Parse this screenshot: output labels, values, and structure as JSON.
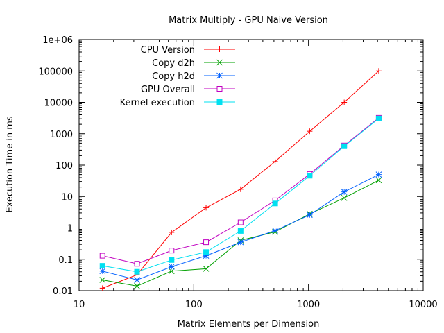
{
  "chart_data": {
    "type": "line",
    "title": "Matrix Multiply - GPU Naive Version",
    "xlabel": "Matrix Elements per Dimension",
    "ylabel": "Execution Time in ms",
    "xscale": "log",
    "yscale": "log",
    "xlim": [
      10,
      10000
    ],
    "ylim": [
      0.01,
      1000000
    ],
    "xticks": [
      {
        "value": 10,
        "label": "10"
      },
      {
        "value": 100,
        "label": "100"
      },
      {
        "value": 1000,
        "label": "1000"
      },
      {
        "value": 10000,
        "label": "10000"
      }
    ],
    "yticks": [
      {
        "value": 0.01,
        "label": "0.01"
      },
      {
        "value": 0.1,
        "label": "0.1"
      },
      {
        "value": 1,
        "label": "1"
      },
      {
        "value": 10,
        "label": "10"
      },
      {
        "value": 100,
        "label": "100"
      },
      {
        "value": 1000,
        "label": "1000"
      },
      {
        "value": 10000,
        "label": "10000"
      },
      {
        "value": 100000,
        "label": "100000"
      },
      {
        "value": 1000000,
        "label": "1e+06"
      }
    ],
    "grid": false,
    "legend_position": "top-left",
    "x": [
      16,
      32,
      64,
      128,
      256,
      512,
      1024,
      2048,
      4096
    ],
    "series": [
      {
        "name": "CPU Version",
        "color": "#ff0000",
        "marker": "plus",
        "values": [
          0.012,
          0.032,
          0.72,
          4.4,
          17,
          130,
          1200,
          10000,
          100000
        ]
      },
      {
        "name": "Copy d2h",
        "color": "#00a000",
        "marker": "cross",
        "values": [
          0.022,
          0.014,
          0.042,
          0.05,
          0.4,
          0.75,
          2.8,
          9,
          33
        ]
      },
      {
        "name": "Copy h2d",
        "color": "#0060ff",
        "marker": "star",
        "values": [
          0.042,
          0.022,
          0.058,
          0.13,
          0.35,
          0.82,
          2.6,
          14,
          50
        ]
      },
      {
        "name": "GPU Overall",
        "color": "#c000c0",
        "marker": "open-square",
        "values": [
          0.13,
          0.072,
          0.19,
          0.35,
          1.5,
          7.5,
          52,
          420,
          3200
        ]
      },
      {
        "name": "Kernel execution",
        "color": "#00e0f0",
        "marker": "filled-square",
        "values": [
          0.062,
          0.04,
          0.095,
          0.17,
          0.8,
          6,
          46,
          400,
          3050
        ]
      }
    ]
  }
}
